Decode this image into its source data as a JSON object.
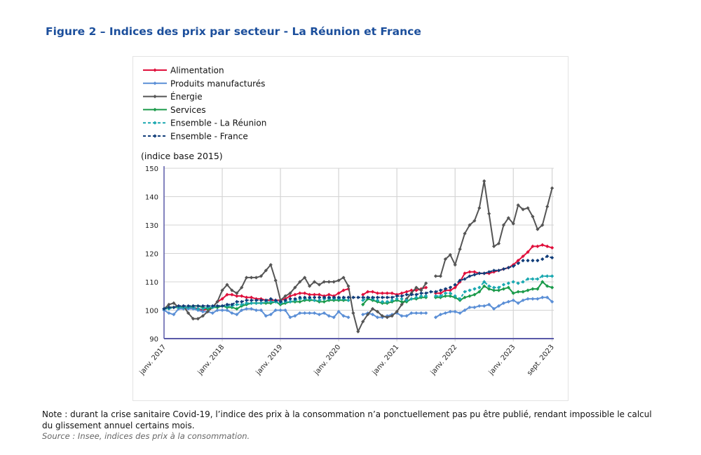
{
  "title": "Figure 2 – Indices des prix par secteur - La Réunion et France",
  "note": "Note : durant la crise sanitaire Covid-19, l’indice des prix à la consommation n’a ponctuellement pas pu être publié, rendant impossible le calcul du glissement annuel certains mois.",
  "source": "Source : Insee, indices des prix à la consommation.",
  "chart_data": {
    "type": "line",
    "ylabel": "(indice base 2015)",
    "ylim": [
      90,
      150
    ],
    "yticks": [
      90,
      100,
      110,
      120,
      130,
      140,
      150
    ],
    "x_start": "2017-01",
    "x_end": "2023-09",
    "x_frequency": "monthly",
    "xtick_labels": [
      "janv. 2017",
      "janv. 2018",
      "janv. 2019",
      "janv. 2020",
      "janv. 2021",
      "janv. 2022",
      "janv. 2023",
      "sept. 2023"
    ],
    "grid": "vertical at January of each year, horizontal every 10",
    "legend_placement": "top-left",
    "series": [
      {
        "name": "Alimentation",
        "color": "#e0103c",
        "dashed": false,
        "values": [
          100.5,
          101,
          101,
          101.5,
          101,
          101,
          101,
          100.5,
          100,
          100.5,
          101,
          103,
          104,
          105.5,
          105.5,
          105,
          105,
          104.5,
          104.5,
          104,
          104,
          103.5,
          103.5,
          103.5,
          103.5,
          104,
          105,
          105.5,
          106,
          106,
          105.5,
          105.5,
          105.5,
          105,
          105.5,
          105,
          106,
          107,
          107.5,
          null,
          null,
          105.5,
          106.5,
          106.5,
          106,
          106,
          106,
          106,
          105.5,
          106,
          106.5,
          107,
          107,
          107.5,
          108,
          null,
          106,
          106,
          107,
          107,
          108,
          110,
          113,
          113.5,
          113.5,
          113,
          113,
          113,
          113.5,
          114,
          114.5,
          115,
          116,
          117.5,
          119,
          120.5,
          122.5,
          122.5,
          123,
          122.5,
          122
        ]
      },
      {
        "name": "Produits manufacturés",
        "color": "#5b8fd6",
        "dashed": false,
        "values": [
          100,
          99,
          98.5,
          100.5,
          100.5,
          100.5,
          100.5,
          100,
          99.5,
          99.5,
          99,
          100,
          100,
          100,
          99,
          98.5,
          100,
          100.5,
          100.5,
          100,
          100,
          98,
          98.5,
          100,
          100,
          100,
          97.5,
          98,
          99,
          99,
          99,
          99,
          98.5,
          99,
          98,
          97.5,
          99.5,
          98,
          97.5,
          null,
          null,
          98.5,
          99,
          98.5,
          97.5,
          97.5,
          98,
          98.5,
          99,
          98,
          98,
          99,
          99,
          99,
          99,
          null,
          97.5,
          98.5,
          99,
          99.5,
          99.5,
          99,
          100,
          101,
          101,
          101.5,
          101.5,
          102,
          100.5,
          101.5,
          102.5,
          103,
          103.5,
          102.5,
          103.5,
          104,
          104,
          104,
          104.5,
          104.5,
          103
        ]
      },
      {
        "name": "Énergie",
        "color": "#555555",
        "dashed": false,
        "values": [
          100.5,
          102,
          102.5,
          101,
          101.5,
          99,
          97,
          97,
          98,
          99.5,
          101,
          103,
          107,
          109,
          107,
          106,
          108,
          111.5,
          111.5,
          111.5,
          112,
          114,
          116,
          110.5,
          103.5,
          105,
          106,
          108,
          110,
          111.5,
          108.5,
          110,
          109,
          110,
          110,
          110,
          110.5,
          111.5,
          108.5,
          99,
          92.5,
          96,
          98.5,
          100.5,
          99.5,
          98,
          97.5,
          98,
          99.5,
          102,
          104,
          106,
          108,
          107,
          109.5,
          null,
          112,
          112,
          118,
          119.5,
          116,
          121.5,
          127,
          130,
          131.5,
          136,
          145.5,
          134,
          122.5,
          123.5,
          130,
          132.5,
          130.5,
          137,
          135.5,
          136,
          133,
          128.5,
          130,
          136.5,
          143
        ]
      },
      {
        "name": "Services",
        "color": "#1a9a4a",
        "dashed": false,
        "values": [
          100.5,
          101,
          101,
          101,
          101,
          101,
          101.5,
          101.5,
          101,
          100.5,
          101,
          101,
          101.5,
          101,
          101,
          100.5,
          101.5,
          102,
          102.5,
          102.5,
          102.5,
          102.5,
          102.5,
          103,
          102,
          102.5,
          103,
          103,
          103,
          103.5,
          103.5,
          103.5,
          103,
          103,
          103.5,
          103.5,
          103.5,
          103.5,
          103.5,
          null,
          null,
          102,
          104,
          103.5,
          103,
          102.5,
          102.5,
          103,
          103.5,
          103,
          103,
          104,
          104,
          104.5,
          104.5,
          null,
          104.5,
          104.5,
          105,
          105,
          104.5,
          103.5,
          104.5,
          105,
          105.5,
          106.5,
          108.5,
          107.5,
          107,
          107,
          107.5,
          108,
          106,
          106.5,
          106.5,
          107,
          107.5,
          107.5,
          110,
          108.5,
          108
        ]
      },
      {
        "name": "Ensemble - La Réunion",
        "color": "#1aa8b0",
        "dashed": true,
        "values": [
          100.5,
          100.5,
          101,
          101,
          101,
          101,
          101,
          100.5,
          100.5,
          101,
          101,
          101.5,
          101.5,
          101.5,
          101.5,
          102,
          102,
          102.5,
          102.5,
          102.5,
          102.5,
          103,
          103,
          103,
          102.5,
          103,
          103,
          103.5,
          104,
          104,
          104,
          103.5,
          103.5,
          104,
          104,
          104,
          104,
          104,
          103.5,
          null,
          null,
          103.5,
          104.5,
          104,
          103.5,
          103,
          103,
          103.5,
          104,
          104,
          103.5,
          104,
          104.5,
          105,
          105,
          null,
          105,
          105,
          106,
          106,
          105,
          104,
          106.5,
          107,
          107.5,
          108,
          110,
          108.5,
          108,
          108,
          109,
          109.5,
          110,
          109.5,
          110,
          111,
          111,
          111,
          112,
          112,
          112
        ]
      },
      {
        "name": "Ensemble - France",
        "color": "#123e7a",
        "dashed": true,
        "values": [
          100.5,
          101,
          101,
          101.5,
          101.5,
          101.5,
          101.5,
          101.5,
          101.5,
          101.5,
          101.5,
          101.5,
          101.5,
          102,
          102,
          103,
          103,
          103.5,
          103.5,
          103.5,
          103.5,
          103.5,
          104,
          103.5,
          103,
          103.5,
          104,
          104,
          104.5,
          104.5,
          104.5,
          104.5,
          104.5,
          104.5,
          104.5,
          104.5,
          104.5,
          104.5,
          104.5,
          104.5,
          104.5,
          104.5,
          104.5,
          104.5,
          104.5,
          104.5,
          104.5,
          104.5,
          105,
          105,
          105.5,
          105.5,
          105.5,
          106,
          106,
          106.5,
          106.5,
          107,
          107.5,
          108,
          109,
          110.5,
          111,
          112,
          112.5,
          113,
          113,
          113.5,
          114,
          114,
          114.5,
          115,
          115.5,
          116.5,
          117.5,
          117.5,
          117.5,
          117.5,
          118,
          119,
          118.5
        ]
      }
    ]
  }
}
